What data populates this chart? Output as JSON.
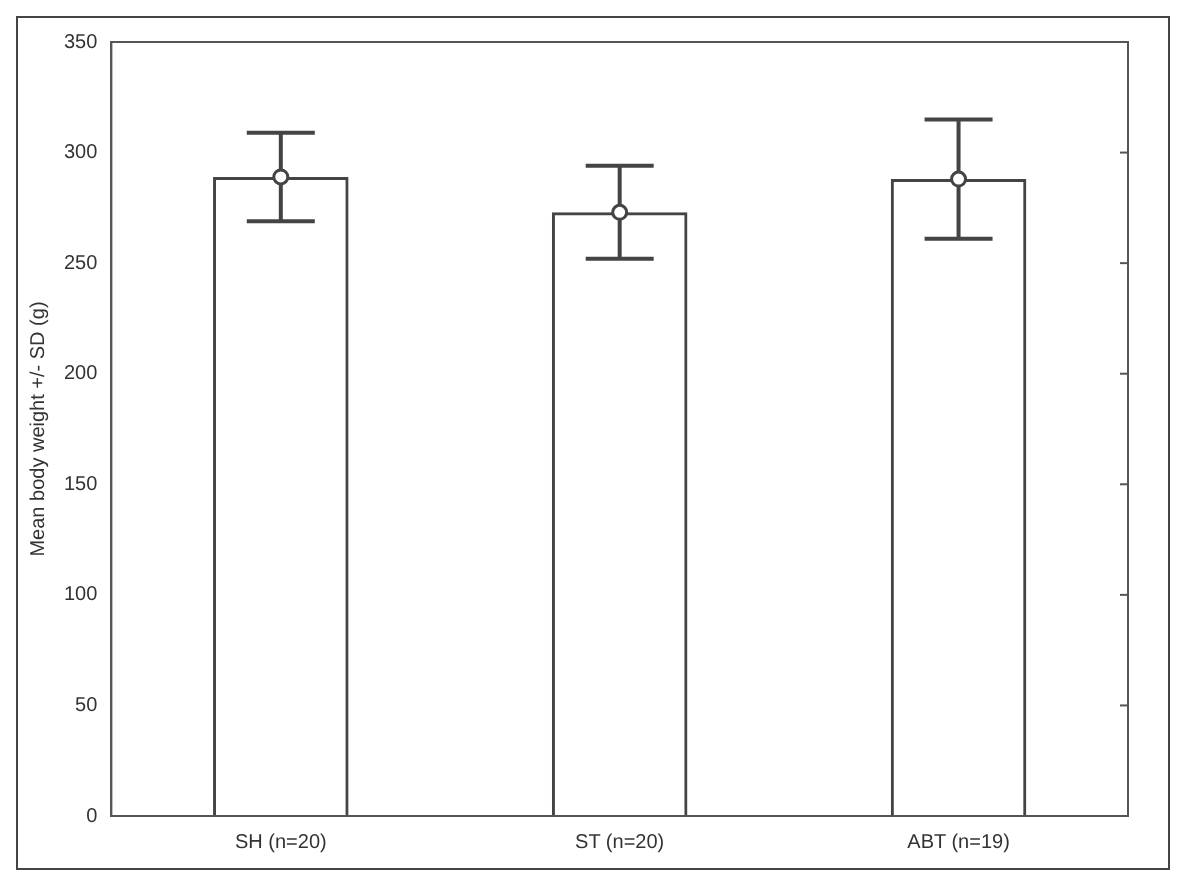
{
  "chart_data": {
    "type": "bar",
    "ylabel": "Mean body weight +/- SD (g)",
    "categories": [
      "SH (n=20)",
      "ST (n=20)",
      "ABT (n=19)"
    ],
    "series": [
      {
        "color": "#444444",
        "values": [
          289,
          273,
          288
        ],
        "errors": [
          20,
          21,
          27
        ]
      },
      {
        "type": "scatter",
        "color": "#444444",
        "marker": "circle",
        "x": [
          "SH (n=20)",
          "ST (n=20)",
          "ABT (n=19)"
        ],
        "values": [
          289,
          273,
          288
        ]
      }
    ],
    "ylim": [
      0,
      350
    ],
    "yticks": [
      0,
      50,
      100,
      150,
      200,
      250,
      300,
      350
    ],
    "grid": false
  }
}
